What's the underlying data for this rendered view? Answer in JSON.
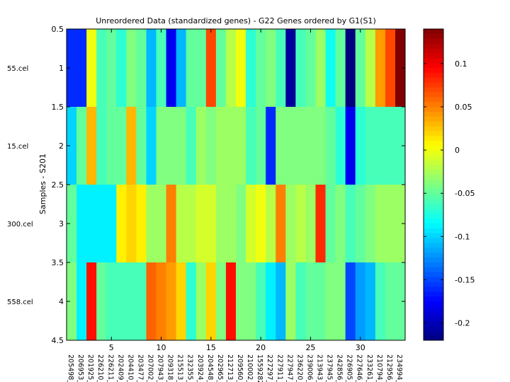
{
  "chart_data": {
    "type": "heatmap",
    "title": "Unreordered Data (standardized genes) - G22 Genes ordered by G1(S1)",
    "ylabel": "Samples - S201",
    "xlabel": "",
    "row_labels": [
      "55.cel",
      "15.cel",
      "300.cel",
      "558.cel"
    ],
    "col_labels": [
      "205498_",
      "206953_",
      "201925_",
      "226210_",
      "226211_",
      "202409_",
      "204410_",
      "203477_",
      "207002_",
      "207943_",
      "209318_",
      "215513_",
      "232355_",
      "203924_",
      "204548_",
      "202965_",
      "212713_",
      "209560_",
      "210002_",
      "1559282_",
      "227297_",
      "227911_",
      "227947_",
      "236220_",
      "239006_",
      "213943_",
      "237945_",
      "242856_",
      "226905_",
      "227646_",
      "233261_",
      "210794_",
      "212956_",
      "234994_"
    ],
    "x_ticks": [
      5,
      10,
      15,
      20,
      25,
      30
    ],
    "y_ticks": [
      0.5,
      1,
      1.5,
      2,
      2.5,
      3,
      3.5,
      4,
      4.5
    ],
    "xlim": [
      0.5,
      34.5
    ],
    "ylim": [
      0.5,
      4.5
    ],
    "colorbar": {
      "colormap": "jet",
      "range": [
        -0.22,
        0.14
      ],
      "ticks": [
        0.1,
        0.05,
        0,
        -0.05,
        -0.1,
        -0.15,
        -0.2
      ],
      "tick_labels": [
        "0.1",
        "0.05",
        "0",
        "-0.05",
        "-0.1",
        "-0.15",
        "-0.2"
      ]
    },
    "values": [
      [
        -0.16,
        -0.16,
        0.0,
        -0.06,
        -0.05,
        -0.07,
        -0.04,
        -0.05,
        -0.11,
        -0.06,
        -0.18,
        -0.11,
        -0.05,
        -0.05,
        0.07,
        -0.05,
        -0.02,
        0.0,
        -0.07,
        -0.05,
        -0.04,
        -0.06,
        -0.21,
        -0.06,
        -0.05,
        -0.03,
        -0.08,
        -0.05,
        -0.22,
        -0.05,
        -0.02,
        0.04,
        0.07,
        0.14
      ],
      [
        -0.1,
        -0.05,
        0.03,
        -0.06,
        -0.05,
        -0.05,
        0.03,
        -0.05,
        -0.1,
        -0.04,
        -0.04,
        -0.04,
        -0.06,
        -0.03,
        -0.04,
        -0.03,
        -0.03,
        -0.03,
        -0.06,
        -0.05,
        -0.16,
        -0.04,
        -0.04,
        -0.04,
        -0.04,
        -0.04,
        -0.05,
        -0.07,
        -0.18,
        -0.07,
        -0.06,
        -0.06,
        -0.06,
        -0.06
      ],
      [
        -0.05,
        -0.09,
        -0.09,
        -0.09,
        -0.09,
        0.01,
        0.02,
        0.01,
        -0.03,
        -0.03,
        0.05,
        -0.02,
        -0.02,
        -0.01,
        -0.01,
        -0.03,
        -0.03,
        -0.04,
        -0.01,
        0.0,
        -0.02,
        0.05,
        -0.03,
        -0.02,
        -0.03,
        0.08,
        -0.05,
        -0.04,
        -0.06,
        -0.05,
        -0.04,
        -0.03,
        -0.03,
        -0.03
      ],
      [
        -0.04,
        -0.09,
        0.09,
        -0.05,
        -0.06,
        -0.06,
        -0.06,
        -0.06,
        0.06,
        0.05,
        0.04,
        0.02,
        -0.07,
        -0.03,
        0.02,
        -0.04,
        0.09,
        -0.04,
        -0.04,
        -0.06,
        -0.09,
        -0.11,
        -0.03,
        -0.06,
        -0.05,
        -0.05,
        -0.04,
        -0.04,
        -0.15,
        -0.12,
        -0.11,
        -0.06,
        -0.05,
        -0.05
      ]
    ]
  }
}
